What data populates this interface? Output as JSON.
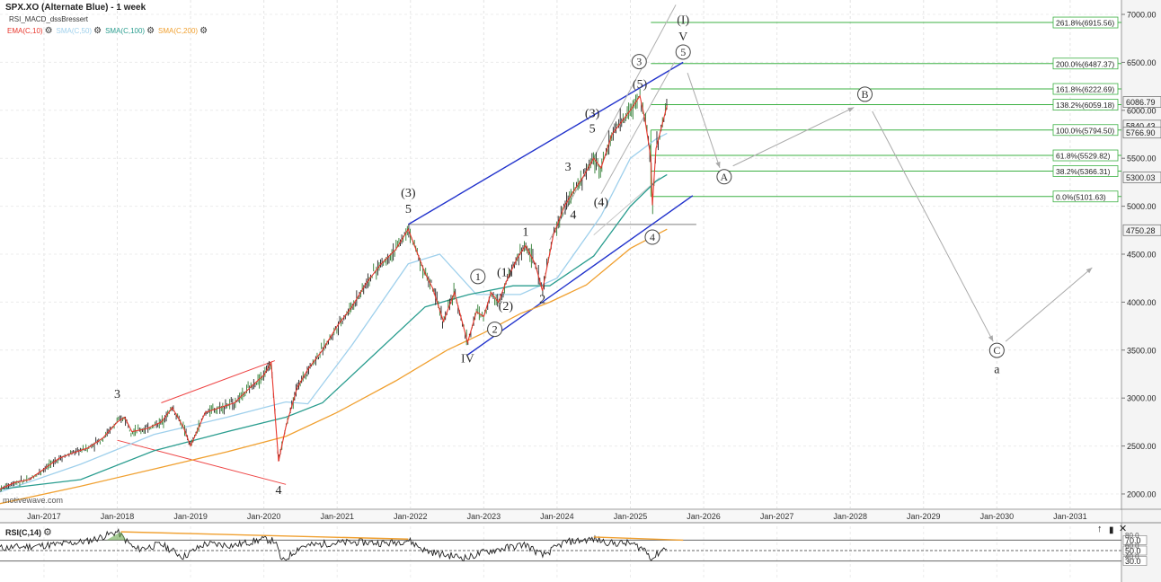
{
  "header": {
    "title": "SPX.XO (Alternate Blue) - 1 week",
    "subtitle": "RSI_MACD_dssBressert",
    "indicators": [
      {
        "label": "EMA(C,10)",
        "color": "#e8372d"
      },
      {
        "label": "SMA(C,50)",
        "color": "#9fd0ec"
      },
      {
        "label": "SMA(C,100)",
        "color": "#2a9d8f"
      },
      {
        "label": "SMA(C,200)",
        "color": "#f0a030"
      }
    ]
  },
  "watermark": "motivewave.com",
  "price_axis": {
    "ticks": [
      "7000.00",
      "6500.00",
      "6000.00",
      "5500.00",
      "5000.00",
      "4500.00",
      "4000.00",
      "3500.00",
      "3000.00",
      "2500.00",
      "2000.00"
    ],
    "markers": [
      {
        "label": "6086.79",
        "value": 6086.79
      },
      {
        "label": "5840.43",
        "value": 5840.43
      },
      {
        "label": "5766.90",
        "value": 5766.9
      },
      {
        "label": "5300.03",
        "value": 5300.03
      },
      {
        "label": "4750.28",
        "value": 4750.28
      }
    ]
  },
  "time_axis": {
    "ticks": [
      "Jan-2017",
      "Jan-2018",
      "Jan-2019",
      "Jan-2020",
      "Jan-2021",
      "Jan-2022",
      "Jan-2023",
      "Jan-2024",
      "Jan-2025",
      "Jan-2026",
      "Jan-2027",
      "Jan-2028",
      "Jan-2029",
      "Jan-2030",
      "Jan-2031"
    ]
  },
  "fib_levels": [
    {
      "label": "261.8%(6915.56)",
      "value": 6915.56
    },
    {
      "label": "200.0%(6487.37)",
      "value": 6487.37
    },
    {
      "label": "161.8%(6222.69)",
      "value": 6222.69
    },
    {
      "label": "138.2%(6059.18)",
      "value": 6059.18
    },
    {
      "label": "100.0%(5794.50)",
      "value": 5794.5
    },
    {
      "label": "61.8%(5529.82)",
      "value": 5529.82
    },
    {
      "label": "38.2%(5366.31)",
      "value": 5366.31
    },
    {
      "label": "0.0%(5101.63)",
      "value": 5101.63
    }
  ],
  "wave_labels": [
    {
      "text": "3",
      "x": 2018.0,
      "y": 3000,
      "circled": false
    },
    {
      "text": "4",
      "x": 2020.2,
      "y": 2000,
      "circled": false
    },
    {
      "text": "(3)",
      "x": 2021.97,
      "y": 5100,
      "circled": false
    },
    {
      "text": "5",
      "x": 2021.97,
      "y": 4930,
      "circled": false
    },
    {
      "text": "IV",
      "x": 2022.78,
      "y": 3370,
      "circled": false
    },
    {
      "text": "1",
      "x": 2022.92,
      "y": 4230,
      "circled": true
    },
    {
      "text": "(1)",
      "x": 2023.28,
      "y": 4270,
      "circled": false
    },
    {
      "text": "(2)",
      "x": 2023.3,
      "y": 3920,
      "circled": false
    },
    {
      "text": "2",
      "x": 2023.15,
      "y": 3680,
      "circled": true
    },
    {
      "text": "1",
      "x": 2023.57,
      "y": 4690,
      "circled": false
    },
    {
      "text": "2",
      "x": 2023.8,
      "y": 3990,
      "circled": false
    },
    {
      "text": "3",
      "x": 2024.15,
      "y": 5370,
      "circled": false
    },
    {
      "text": "4",
      "x": 2024.22,
      "y": 4870,
      "circled": false
    },
    {
      "text": "(4)",
      "x": 2024.6,
      "y": 5000,
      "circled": false
    },
    {
      "text": "(3)",
      "x": 2024.48,
      "y": 5930,
      "circled": false
    },
    {
      "text": "5",
      "x": 2024.48,
      "y": 5770,
      "circled": false
    },
    {
      "text": "(5)",
      "x": 2025.13,
      "y": 6230,
      "circled": false
    },
    {
      "text": "3",
      "x": 2025.12,
      "y": 6470,
      "circled": true
    },
    {
      "text": "(I)",
      "x": 2025.72,
      "y": 6900,
      "circled": false
    },
    {
      "text": "V",
      "x": 2025.72,
      "y": 6730,
      "circled": false
    },
    {
      "text": "5",
      "x": 2025.72,
      "y": 6570,
      "circled": true
    },
    {
      "text": "4",
      "x": 2025.3,
      "y": 4640,
      "circled": true
    },
    {
      "text": "A",
      "x": 2026.28,
      "y": 5270,
      "circled": true
    },
    {
      "text": "B",
      "x": 2028.2,
      "y": 6130,
      "circled": true
    },
    {
      "text": "C",
      "x": 2030.0,
      "y": 3460,
      "circled": true
    },
    {
      "text": "a",
      "x": 2030.0,
      "y": 3260,
      "circled": false
    }
  ],
  "rsi": {
    "title": "RSI(C,14)",
    "levels": [
      "70.0",
      "50.0",
      "30.0"
    ],
    "ticks": [
      "80.0",
      "60.0",
      "40.0"
    ]
  },
  "chart_data": {
    "type": "line",
    "title": "SPX.XO (Alternate Blue) - 1 week",
    "xlim": [
      2016.4,
      2031.7
    ],
    "ylim": [
      1850,
      7150
    ],
    "price_series": {
      "name": "SPX.XO",
      "x": [
        2016.4,
        2016.6,
        2016.8,
        2017.0,
        2017.2,
        2017.4,
        2017.6,
        2017.8,
        2018.0,
        2018.1,
        2018.2,
        2018.4,
        2018.6,
        2018.75,
        2018.9,
        2019.0,
        2019.2,
        2019.4,
        2019.6,
        2019.8,
        2020.0,
        2020.1,
        2020.2,
        2020.3,
        2020.45,
        2020.6,
        2020.8,
        2021.0,
        2021.2,
        2021.4,
        2021.6,
        2021.8,
        2021.97,
        2022.1,
        2022.2,
        2022.3,
        2022.45,
        2022.6,
        2022.78,
        2022.9,
        2023.0,
        2023.1,
        2023.2,
        2023.3,
        2023.45,
        2023.57,
        2023.7,
        2023.8,
        2023.95,
        2024.1,
        2024.22,
        2024.35,
        2024.5,
        2024.6,
        2024.75,
        2024.9,
        2025.0,
        2025.13,
        2025.2,
        2025.28,
        2025.3,
        2025.35,
        2025.45,
        2025.5
      ],
      "y": [
        2050,
        2120,
        2150,
        2260,
        2370,
        2430,
        2480,
        2580,
        2750,
        2800,
        2650,
        2680,
        2750,
        2900,
        2700,
        2500,
        2850,
        2900,
        2950,
        3100,
        3240,
        3370,
        2340,
        2700,
        3100,
        3300,
        3500,
        3750,
        3950,
        4200,
        4400,
        4550,
        4760,
        4500,
        4300,
        4150,
        3800,
        4100,
        3580,
        3900,
        3850,
        4100,
        4000,
        4200,
        4450,
        4590,
        4400,
        4120,
        4700,
        5000,
        5150,
        5300,
        5500,
        5400,
        5750,
        5900,
        6000,
        6150,
        5900,
        5500,
        5010,
        5600,
        5900,
        6050
      ]
    },
    "indicators": [
      {
        "name": "EMA(C,10)",
        "color": "#e8372d"
      },
      {
        "name": "SMA(C,50)",
        "color": "#9fd0ec",
        "x": [
          2016.4,
          2017.5,
          2018.5,
          2019.5,
          2020.3,
          2020.6,
          2021.2,
          2021.97,
          2022.4,
          2022.9,
          2023.5,
          2024.0,
          2024.6,
          2025.0,
          2025.35,
          2025.5
        ],
        "y": [
          2020,
          2310,
          2620,
          2800,
          2960,
          2940,
          3550,
          4400,
          4500,
          4080,
          4080,
          4250,
          4900,
          5500,
          5700,
          5760
        ]
      },
      {
        "name": "SMA(C,100)",
        "color": "#2a9d8f",
        "x": [
          2016.4,
          2017.5,
          2018.5,
          2019.5,
          2020.3,
          2020.8,
          2021.5,
          2022.2,
          2022.8,
          2023.4,
          2023.9,
          2024.5,
          2025.0,
          2025.35,
          2025.5
        ],
        "y": [
          2050,
          2150,
          2450,
          2650,
          2800,
          2950,
          3450,
          3950,
          4080,
          4170,
          4170,
          4480,
          5000,
          5260,
          5330
        ]
      },
      {
        "name": "SMA(C,200)",
        "color": "#f0a030",
        "x": [
          2016.4,
          2017.5,
          2018.5,
          2019.5,
          2020.3,
          2021.0,
          2021.8,
          2022.5,
          2023.0,
          2023.5,
          2023.9,
          2024.4,
          2025.0,
          2025.35,
          2025.5
        ],
        "y": [
          1900,
          2080,
          2260,
          2440,
          2600,
          2850,
          3180,
          3500,
          3680,
          3880,
          4000,
          4180,
          4560,
          4700,
          4760
        ]
      }
    ],
    "rsi_series": {
      "name": "RSI(C,14)",
      "x": [
        2016.4,
        2016.8,
        2017.2,
        2017.6,
        2018.0,
        2018.1,
        2018.25,
        2018.6,
        2018.9,
        2019.2,
        2019.6,
        2020.0,
        2020.15,
        2020.25,
        2020.5,
        2020.9,
        2021.3,
        2021.7,
        2021.97,
        2022.2,
        2022.45,
        2022.78,
        2023.0,
        2023.3,
        2023.57,
        2023.8,
        2024.1,
        2024.5,
        2024.75,
        2025.0,
        2025.2,
        2025.3,
        2025.4,
        2025.5
      ],
      "y": [
        55,
        58,
        62,
        68,
        86,
        72,
        52,
        62,
        38,
        63,
        60,
        72,
        68,
        28,
        58,
        64,
        66,
        64,
        70,
        50,
        42,
        36,
        47,
        55,
        62,
        40,
        66,
        72,
        64,
        64,
        52,
        34,
        48,
        58
      ]
    }
  }
}
